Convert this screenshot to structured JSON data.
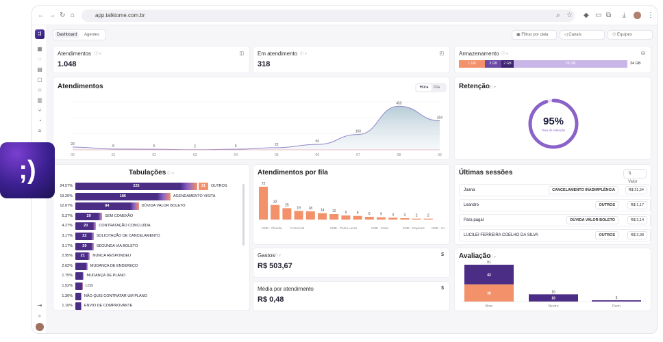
{
  "browser": {
    "url": "app.talktome.com.br"
  },
  "toolbar": {
    "tab_dashboard": "Dashboard",
    "tab_agents": "Agentes",
    "filter_date": "Filtrar por data",
    "channels": "Canais",
    "teams": "Equipes"
  },
  "kpi": {
    "atendimentos_label": "Atendimentos",
    "atendimentos_value": "1.048",
    "em_atendimento_label": "Em atendimento",
    "em_atendimento_value": "318",
    "armazenamento_label": "Armazenamento",
    "storage_segments": [
      "1 GB",
      "3 GB",
      "2 GB",
      "29 GB"
    ],
    "storage_total": "34 GB"
  },
  "atendimentos_chart": {
    "title": "Atendimentos",
    "toggle_hour": "Hora",
    "toggle_day": "Dia"
  },
  "retencao": {
    "title": "Retenção",
    "value": "95%",
    "label": "Taxa de retenção",
    "fraction": 0.95
  },
  "tabulacoes": {
    "title": "Tabulações",
    "rows": [
      {
        "pct": "24.57%",
        "value": "225",
        "label": "OUTROS",
        "extra": "21",
        "w": 1.0
      },
      {
        "pct": "19.26%",
        "value": "186",
        "label": "AGENDAMENTO VISITA",
        "w": 0.78
      },
      {
        "pct": "12.67%",
        "value": "84",
        "label": "DÚVIDA VALOR BOLETO",
        "w": 0.52
      },
      {
        "pct": "5.37%",
        "value": "29",
        "label": "SEM CONEXÃO",
        "w": 0.22
      },
      {
        "pct": "4.27%",
        "value": "20",
        "label": "CONTRATAÇÃO CONCLUÍDA",
        "w": 0.17
      },
      {
        "pct": "3.17%",
        "value": "22",
        "label": "SOLICITAÇÃO DE CANCELAMENTO",
        "w": 0.15
      },
      {
        "pct": "3.17%",
        "value": "29",
        "label": "SEGUNDA VIA BOLETO",
        "w": 0.15
      },
      {
        "pct": "2.95%",
        "value": "21",
        "label": "NUNCA RESPONDEU",
        "w": 0.12
      },
      {
        "pct": "2.62%",
        "value": "",
        "label": "MUDANÇA DE ENDEREÇO",
        "w": 0.1
      },
      {
        "pct": "1.75%",
        "value": "",
        "label": "MUDANÇA DE PLANO",
        "w": 0.07
      },
      {
        "pct": "1.52%",
        "value": "",
        "label": "LOS",
        "w": 0.06
      },
      {
        "pct": "1.36%",
        "value": "",
        "label": "NÃO QUIS CONTRATAR UM PLANO",
        "w": 0.05
      },
      {
        "pct": "1.10%",
        "value": "",
        "label": "ENVIO DE COMPROVANTE",
        "w": 0.05
      }
    ]
  },
  "fila": {
    "title": "Atendimentos por fila",
    "labels": [
      "CME - Cláudia",
      "Comercial",
      "CME - Pedro Lucas",
      "CME - Israel",
      "CME - Rayanne",
      "CME - Co"
    ]
  },
  "gastos": {
    "label": "Gastos",
    "value": "R$ 503,67"
  },
  "media": {
    "label": "Média por atendimento",
    "value": "R$ 0,48"
  },
  "sessoes": {
    "title": "Últimas sessões",
    "sort": "Valor",
    "rows": [
      {
        "name": "Joana",
        "tag": "CANCELAMENTO INADIMPLÊNCIA",
        "price": "R$ 21,54"
      },
      {
        "name": "Leandro",
        "tag": "OUTROS",
        "price": "R$ 1,17"
      },
      {
        "name": "Para pagar",
        "tag": "DÚVIDA VALOR BOLETO",
        "price": "R$ 3,14"
      },
      {
        "name": "LUCILEI FERREIRA COELHO DA SILVA",
        "tag": "OUTROS",
        "price": "R$ 3,98"
      }
    ]
  },
  "avaliacao": {
    "title": "Avaliação"
  },
  "chart_data": [
    {
      "type": "area",
      "x": [
        "00",
        "01",
        "02",
        "03",
        "04",
        "05",
        "06",
        "07",
        "08",
        "09"
      ],
      "values": [
        29,
        8,
        6,
        2,
        6,
        22,
        56,
        160,
        455,
        304
      ],
      "ylim": [
        0,
        500
      ]
    },
    {
      "type": "bar",
      "values": [
        72,
        32,
        25,
        19,
        18,
        14,
        12,
        9,
        8,
        6,
        5,
        4,
        3,
        2,
        2
      ]
    },
    {
      "type": "bar",
      "categories": [
        "Bom",
        "Neutro",
        "Ruim"
      ],
      "series": [
        {
          "values": [
            38,
            0,
            0
          ],
          "color": "#f2916a"
        },
        {
          "values": [
            43,
            16,
            3
          ],
          "color": "#4b2d85"
        }
      ],
      "totals": [
        81,
        16,
        3
      ]
    }
  ]
}
